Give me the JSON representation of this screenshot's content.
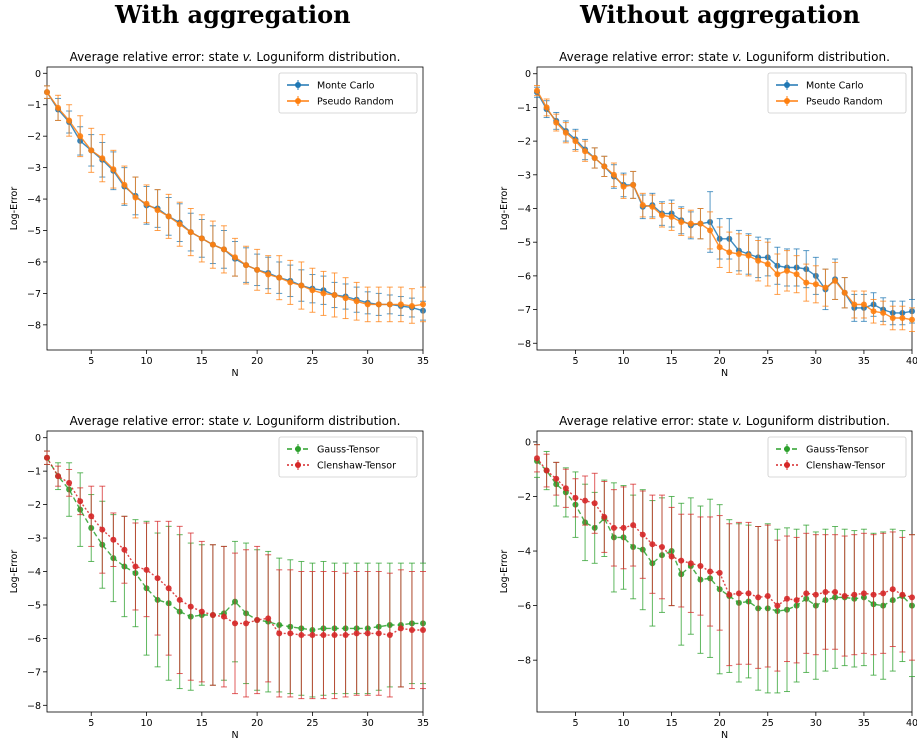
{
  "header": {
    "left_title": "With aggregation",
    "right_title": "Without aggregation"
  },
  "chart_data": [
    {
      "type": "line",
      "panel": "top-left",
      "title": "Average relative error: state v. Loguniform distribution.",
      "title_parts": [
        "Average relative error: state ",
        "v.",
        " Loguniform distribution."
      ],
      "xlabel": "N",
      "ylabel": "Log-Error",
      "xlim": [
        1,
        35
      ],
      "ylim": [
        -8.8,
        0.2
      ],
      "xticks": [
        5,
        10,
        15,
        20,
        25,
        30,
        35
      ],
      "yticks": [
        0,
        -1,
        -2,
        -3,
        -4,
        -5,
        -6,
        -7,
        -8
      ],
      "legend": "top-right",
      "series": [
        {
          "name": "Monte Carlo",
          "color": "#1f77b4",
          "x": [
            1,
            2,
            3,
            4,
            5,
            6,
            7,
            8,
            9,
            10,
            11,
            12,
            13,
            14,
            15,
            16,
            17,
            18,
            19,
            20,
            21,
            22,
            23,
            24,
            25,
            26,
            27,
            28,
            29,
            30,
            31,
            32,
            33,
            34,
            35
          ],
          "y": [
            -0.6,
            -1.15,
            -1.55,
            -2.15,
            -2.45,
            -2.75,
            -3.1,
            -3.6,
            -3.9,
            -4.2,
            -4.3,
            -4.55,
            -4.75,
            -5.05,
            -5.25,
            -5.45,
            -5.6,
            -5.9,
            -6.1,
            -6.25,
            -6.35,
            -6.5,
            -6.6,
            -6.75,
            -6.85,
            -6.9,
            -7.05,
            -7.1,
            -7.2,
            -7.3,
            -7.35,
            -7.35,
            -7.4,
            -7.45,
            -7.55
          ],
          "err": [
            0.2,
            0.35,
            0.35,
            0.45,
            0.5,
            0.55,
            0.6,
            0.6,
            0.6,
            0.6,
            0.6,
            0.6,
            0.6,
            0.6,
            0.6,
            0.6,
            0.6,
            0.55,
            0.55,
            0.5,
            0.5,
            0.5,
            0.5,
            0.5,
            0.45,
            0.45,
            0.4,
            0.4,
            0.4,
            0.35,
            0.35,
            0.3,
            0.3,
            0.3,
            0.3
          ]
        },
        {
          "name": "Pseudo Random",
          "color": "#ff7f0e",
          "x": [
            1,
            2,
            3,
            4,
            5,
            6,
            7,
            8,
            9,
            10,
            11,
            12,
            13,
            14,
            15,
            16,
            17,
            18,
            19,
            20,
            21,
            22,
            23,
            24,
            25,
            26,
            27,
            28,
            29,
            30,
            31,
            32,
            33,
            34,
            35
          ],
          "y": [
            -0.6,
            -1.1,
            -1.5,
            -2.0,
            -2.45,
            -2.7,
            -3.05,
            -3.55,
            -3.95,
            -4.15,
            -4.35,
            -4.55,
            -4.8,
            -5.05,
            -5.25,
            -5.45,
            -5.6,
            -5.85,
            -6.1,
            -6.25,
            -6.4,
            -6.5,
            -6.65,
            -6.75,
            -6.9,
            -7.0,
            -7.05,
            -7.15,
            -7.25,
            -7.35,
            -7.35,
            -7.35,
            -7.35,
            -7.4,
            -7.35
          ],
          "err": [
            0.2,
            0.4,
            0.5,
            0.65,
            0.7,
            0.75,
            0.6,
            0.6,
            0.65,
            0.6,
            0.65,
            0.7,
            0.7,
            0.75,
            0.75,
            0.75,
            0.75,
            0.6,
            0.6,
            0.65,
            0.6,
            0.7,
            0.7,
            0.75,
            0.7,
            0.7,
            0.7,
            0.65,
            0.6,
            0.55,
            0.55,
            0.55,
            0.55,
            0.55,
            0.55
          ]
        }
      ]
    },
    {
      "type": "line",
      "panel": "top-right",
      "title": "Average relative error: state v. Loguniform distribution.",
      "title_parts": [
        "Average relative error: state ",
        "v.",
        " Loguniform distribution."
      ],
      "xlabel": "N",
      "ylabel": "Log-Error",
      "xlim": [
        1,
        40
      ],
      "ylim": [
        -8.2,
        0.2
      ],
      "xticks": [
        5,
        10,
        15,
        20,
        25,
        30,
        35,
        40
      ],
      "yticks": [
        0,
        -1,
        -2,
        -3,
        -4,
        -5,
        -6,
        -7,
        -8
      ],
      "legend": "top-right",
      "series": [
        {
          "name": "Monte Carlo",
          "color": "#1f77b4",
          "x": [
            1,
            2,
            3,
            4,
            5,
            6,
            7,
            8,
            9,
            10,
            11,
            12,
            13,
            14,
            15,
            16,
            17,
            18,
            19,
            20,
            21,
            22,
            23,
            24,
            25,
            26,
            27,
            28,
            29,
            30,
            31,
            32,
            33,
            34,
            35,
            36,
            37,
            38,
            39,
            40
          ],
          "y": [
            -0.55,
            -1.05,
            -1.4,
            -1.7,
            -1.95,
            -2.25,
            -2.5,
            -2.75,
            -3.05,
            -3.3,
            -3.3,
            -3.95,
            -3.9,
            -4.15,
            -4.15,
            -4.35,
            -4.5,
            -4.45,
            -4.4,
            -4.9,
            -4.9,
            -5.25,
            -5.35,
            -5.45,
            -5.45,
            -5.7,
            -5.75,
            -5.75,
            -5.8,
            -6.0,
            -6.4,
            -6.1,
            -6.5,
            -6.95,
            -6.95,
            -6.85,
            -7.0,
            -7.1,
            -7.1,
            -7.05
          ],
          "err": [
            0.15,
            0.25,
            0.25,
            0.3,
            0.3,
            0.3,
            0.3,
            0.3,
            0.35,
            0.35,
            0.4,
            0.35,
            0.35,
            0.35,
            0.4,
            0.4,
            0.4,
            0.45,
            0.9,
            0.6,
            0.6,
            0.6,
            0.6,
            0.6,
            0.55,
            0.55,
            0.55,
            0.55,
            0.55,
            0.55,
            0.6,
            0.6,
            0.45,
            0.4,
            0.4,
            0.35,
            0.35,
            0.35,
            0.35,
            0.35
          ]
        },
        {
          "name": "Pseudo Random",
          "color": "#ff7f0e",
          "x": [
            1,
            2,
            3,
            4,
            5,
            6,
            7,
            8,
            9,
            10,
            11,
            12,
            13,
            14,
            15,
            16,
            17,
            18,
            19,
            20,
            21,
            22,
            23,
            24,
            25,
            26,
            27,
            28,
            29,
            30,
            31,
            32,
            33,
            34,
            35,
            36,
            37,
            38,
            39,
            40
          ],
          "y": [
            -0.5,
            -1.0,
            -1.45,
            -1.75,
            -2.0,
            -2.3,
            -2.5,
            -2.75,
            -3.0,
            -3.35,
            -3.3,
            -3.9,
            -3.95,
            -4.2,
            -4.25,
            -4.4,
            -4.45,
            -4.45,
            -4.65,
            -5.15,
            -5.3,
            -5.35,
            -5.4,
            -5.55,
            -5.65,
            -5.95,
            -5.85,
            -5.95,
            -6.2,
            -6.25,
            -6.35,
            -6.15,
            -6.5,
            -6.85,
            -6.85,
            -7.05,
            -7.1,
            -7.25,
            -7.25,
            -7.3
          ],
          "err": [
            0.15,
            0.25,
            0.25,
            0.3,
            0.3,
            0.3,
            0.3,
            0.3,
            0.35,
            0.35,
            0.4,
            0.35,
            0.35,
            0.35,
            0.4,
            0.4,
            0.4,
            0.45,
            0.55,
            0.6,
            0.6,
            0.6,
            0.6,
            0.6,
            0.65,
            0.6,
            0.6,
            0.55,
            0.55,
            0.55,
            0.55,
            0.55,
            0.45,
            0.4,
            0.4,
            0.35,
            0.35,
            0.35,
            0.35,
            0.35
          ]
        }
      ]
    },
    {
      "type": "line",
      "panel": "bottom-left",
      "title": "Average relative error: state v. Loguniform distribution.",
      "title_parts": [
        "Average relative error: state ",
        "v.",
        " Loguniform distribution."
      ],
      "xlabel": "N",
      "ylabel": "Log-Error",
      "xlim": [
        1,
        35
      ],
      "ylim": [
        -8.2,
        0.2
      ],
      "xticks": [
        5,
        10,
        15,
        20,
        25,
        30,
        35
      ],
      "yticks": [
        0,
        -1,
        -2,
        -3,
        -4,
        -5,
        -6,
        -7,
        -8
      ],
      "legend": "top-right",
      "series": [
        {
          "name": "Gauss-Tensor",
          "color": "#2ca02c",
          "dash": "5,3",
          "x": [
            1,
            2,
            3,
            4,
            5,
            6,
            7,
            8,
            9,
            10,
            11,
            12,
            13,
            14,
            15,
            16,
            17,
            18,
            19,
            20,
            21,
            22,
            23,
            24,
            25,
            26,
            27,
            28,
            29,
            30,
            31,
            32,
            33,
            34,
            35
          ],
          "y": [
            -0.6,
            -1.15,
            -1.55,
            -2.15,
            -2.7,
            -3.2,
            -3.6,
            -3.85,
            -4.05,
            -4.5,
            -4.85,
            -4.95,
            -5.2,
            -5.35,
            -5.3,
            -5.3,
            -5.25,
            -4.9,
            -5.25,
            -5.45,
            -5.5,
            -5.6,
            -5.65,
            -5.7,
            -5.75,
            -5.7,
            -5.7,
            -5.7,
            -5.7,
            -5.7,
            -5.65,
            -5.6,
            -5.6,
            -5.55,
            -5.55
          ],
          "err": [
            0.2,
            0.4,
            0.8,
            1.1,
            1.0,
            1.3,
            1.3,
            1.5,
            1.6,
            2.0,
            2.0,
            2.3,
            2.3,
            2.2,
            2.1,
            2.1,
            2.0,
            1.8,
            2.1,
            2.1,
            2.1,
            2.0,
            2.0,
            2.0,
            2.0,
            2.0,
            1.95,
            1.95,
            1.95,
            1.95,
            1.9,
            1.85,
            1.85,
            1.8,
            1.8
          ]
        },
        {
          "name": "Clenshaw-Tensor",
          "color": "#d62728",
          "dash": "2,2",
          "x": [
            1,
            2,
            3,
            4,
            5,
            6,
            7,
            8,
            9,
            10,
            11,
            12,
            13,
            14,
            15,
            16,
            17,
            18,
            19,
            20,
            21,
            22,
            23,
            24,
            25,
            26,
            27,
            28,
            29,
            30,
            31,
            32,
            33,
            34,
            35
          ],
          "y": [
            -0.6,
            -1.15,
            -1.35,
            -1.9,
            -2.35,
            -2.75,
            -3.05,
            -3.35,
            -3.85,
            -3.95,
            -4.2,
            -4.5,
            -4.85,
            -5.05,
            -5.2,
            -5.3,
            -5.35,
            -5.55,
            -5.55,
            -5.45,
            -5.4,
            -5.85,
            -5.85,
            -5.9,
            -5.9,
            -5.9,
            -5.9,
            -5.9,
            -5.85,
            -5.85,
            -5.85,
            -5.9,
            -5.7,
            -5.75,
            -5.75
          ],
          "err": [
            0.2,
            0.3,
            0.4,
            0.4,
            0.9,
            1.3,
            0.8,
            1.0,
            1.3,
            1.4,
            1.7,
            2.0,
            2.2,
            2.2,
            2.1,
            2.1,
            2.1,
            2.1,
            2.2,
            2.2,
            1.9,
            1.9,
            1.9,
            1.9,
            1.9,
            1.9,
            1.9,
            1.85,
            1.85,
            1.85,
            1.85,
            1.85,
            1.75,
            1.75,
            1.75
          ]
        }
      ]
    },
    {
      "type": "line",
      "panel": "bottom-right",
      "title": "Average relative error: state v. Loguniform distribution.",
      "title_parts": [
        "Average relative error: state ",
        "v.",
        " Loguniform distribution."
      ],
      "xlabel": "N",
      "ylabel": "Log-Error",
      "xlim": [
        1,
        40
      ],
      "ylim": [
        -9.9,
        0.4
      ],
      "xticks": [
        5,
        10,
        15,
        20,
        25,
        30,
        35,
        40
      ],
      "yticks": [
        0,
        -2,
        -4,
        -6,
        -8
      ],
      "legend": "top-right",
      "series": [
        {
          "name": "Gauss-Tensor",
          "color": "#2ca02c",
          "dash": "5,3",
          "x": [
            1,
            2,
            3,
            4,
            5,
            6,
            7,
            8,
            9,
            10,
            11,
            12,
            13,
            14,
            15,
            16,
            17,
            18,
            19,
            20,
            21,
            22,
            23,
            24,
            25,
            26,
            27,
            28,
            29,
            30,
            31,
            32,
            33,
            34,
            35,
            36,
            37,
            38,
            39,
            40
          ],
          "y": [
            -0.7,
            -1.05,
            -1.55,
            -1.85,
            -2.3,
            -2.95,
            -3.15,
            -2.8,
            -3.5,
            -3.5,
            -3.85,
            -3.95,
            -4.45,
            -4.15,
            -4.0,
            -4.85,
            -4.55,
            -5.05,
            -5.0,
            -5.4,
            -5.65,
            -5.9,
            -5.85,
            -6.1,
            -6.1,
            -6.2,
            -6.15,
            -6.0,
            -5.75,
            -6.0,
            -5.8,
            -5.7,
            -5.7,
            -5.75,
            -5.7,
            -5.95,
            -6.0,
            -5.8,
            -5.65,
            -6.0
          ],
          "err": [
            0.6,
            0.7,
            0.8,
            0.9,
            1.2,
            1.4,
            1.3,
            1.4,
            2.0,
            1.9,
            1.9,
            2.2,
            2.3,
            2.1,
            2.0,
            2.6,
            2.5,
            2.7,
            2.9,
            3.1,
            2.8,
            2.9,
            2.8,
            3.0,
            3.1,
            3.0,
            3.0,
            2.8,
            2.7,
            2.7,
            2.6,
            2.6,
            2.5,
            2.5,
            2.5,
            2.6,
            2.7,
            2.6,
            2.4,
            2.6
          ]
        },
        {
          "name": "Clenshaw-Tensor",
          "color": "#d62728",
          "dash": "2,2",
          "x": [
            1,
            2,
            3,
            4,
            5,
            6,
            7,
            8,
            9,
            10,
            11,
            12,
            13,
            14,
            15,
            16,
            17,
            18,
            19,
            20,
            21,
            22,
            23,
            24,
            25,
            26,
            27,
            28,
            29,
            30,
            31,
            32,
            33,
            34,
            35,
            36,
            37,
            38,
            39,
            40
          ],
          "y": [
            -0.6,
            -1.05,
            -1.35,
            -1.7,
            -2.05,
            -2.15,
            -2.25,
            -2.75,
            -3.15,
            -3.15,
            -3.05,
            -3.4,
            -3.75,
            -3.85,
            -4.2,
            -4.35,
            -4.45,
            -4.55,
            -4.75,
            -4.8,
            -5.6,
            -5.55,
            -5.55,
            -5.7,
            -5.65,
            -6.0,
            -5.75,
            -5.8,
            -5.55,
            -5.6,
            -5.5,
            -5.5,
            -5.65,
            -5.6,
            -5.55,
            -5.6,
            -5.55,
            -5.4,
            -5.6,
            -5.7
          ],
          "err": [
            0.5,
            0.6,
            0.6,
            0.7,
            0.7,
            0.9,
            1.1,
            1.3,
            1.4,
            1.5,
            1.5,
            1.6,
            1.8,
            1.9,
            1.8,
            1.7,
            1.8,
            1.8,
            2.0,
            2.1,
            2.6,
            2.6,
            2.6,
            2.6,
            2.6,
            2.4,
            2.3,
            2.3,
            2.2,
            2.2,
            2.1,
            2.1,
            2.2,
            2.2,
            2.2,
            2.2,
            2.2,
            2.1,
            2.1,
            2.3
          ]
        }
      ]
    }
  ]
}
